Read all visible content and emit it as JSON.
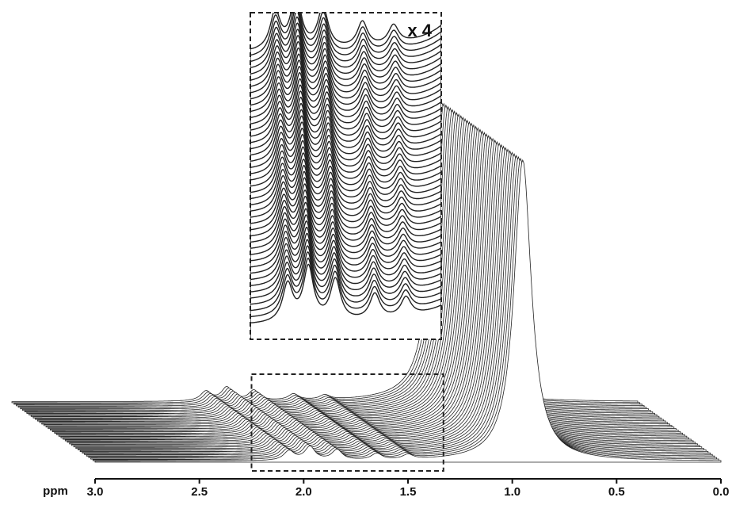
{
  "chart_data": {
    "type": "waterfall",
    "xlabel": "ppm",
    "xlim": [
      3,
      0
    ],
    "xticks": [
      {
        "value": 3,
        "label": "3.0"
      },
      {
        "value": 2.5,
        "label": "2.5"
      },
      {
        "value": 2,
        "label": "2.0"
      },
      {
        "value": 1.5,
        "label": "1.5"
      },
      {
        "value": 1,
        "label": "1.0"
      },
      {
        "value": 0.5,
        "label": "0.5"
      },
      {
        "value": 0,
        "label": "0.0"
      }
    ],
    "peaks": [
      {
        "ppm": 2.07,
        "height": 12,
        "width": 0.03
      },
      {
        "ppm": 1.97,
        "height": 17,
        "width": 0.03
      },
      {
        "ppm": 1.84,
        "height": 13,
        "width": 0.03
      },
      {
        "ppm": 1.65,
        "height": 8,
        "width": 0.03
      },
      {
        "ppm": 1.5,
        "height": 6,
        "width": 0.03
      },
      {
        "ppm": 0.95,
        "height": 380,
        "width": 0.05
      }
    ],
    "inset": {
      "label": "x 4",
      "factor": 4,
      "xlim": [
        2.25,
        1.33
      ]
    }
  }
}
